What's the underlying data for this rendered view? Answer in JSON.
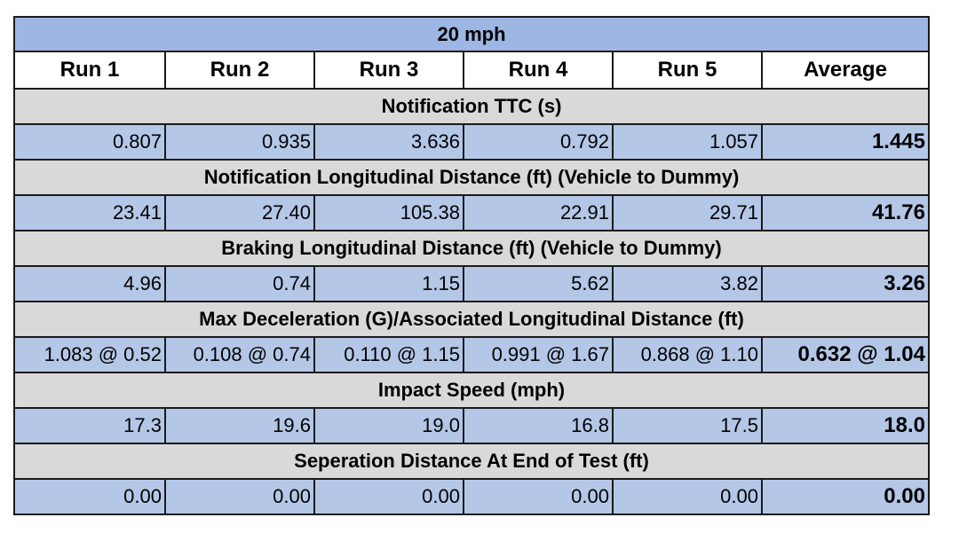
{
  "table": {
    "speed_label": "20 mph",
    "columns": [
      "Run 1",
      "Run 2",
      "Run 3",
      "Run 4",
      "Run 5",
      "Average"
    ],
    "sections": [
      {
        "title": "Notification TTC (s)",
        "runs": [
          "0.807",
          "0.935",
          "3.636",
          "0.792",
          "1.057"
        ],
        "average": "1.445"
      },
      {
        "title": "Notification Longitudinal Distance (ft) (Vehicle to Dummy)",
        "runs": [
          "23.41",
          "27.40",
          "105.38",
          "22.91",
          "29.71"
        ],
        "average": "41.76"
      },
      {
        "title": "Braking Longitudinal Distance (ft) (Vehicle to Dummy)",
        "runs": [
          "4.96",
          "0.74",
          "1.15",
          "5.62",
          "3.82"
        ],
        "average": "3.26"
      },
      {
        "title": "Max Deceleration (G)/Associated Longitudinal Distance (ft)",
        "runs": [
          "1.083 @ 0.52",
          "0.108 @ 0.74",
          "0.110 @ 1.15",
          "0.991 @ 1.67",
          "0.868 @ 1.10"
        ],
        "average": "0.632 @ 1.04"
      },
      {
        "title": "Impact Speed (mph)",
        "runs": [
          "17.3",
          "19.6",
          "19.0",
          "16.8",
          "17.5"
        ],
        "average": "18.0"
      },
      {
        "title": "Seperation Distance At End of Test (ft)",
        "runs": [
          "0.00",
          "0.00",
          "0.00",
          "0.00",
          "0.00"
        ],
        "average": "0.00"
      }
    ]
  },
  "colors": {
    "speed_header_bg": "#9db6e3",
    "section_header_bg": "#d9d9d9",
    "value_row_bg": "#b4c7e7",
    "border": "#1a1a1a"
  }
}
